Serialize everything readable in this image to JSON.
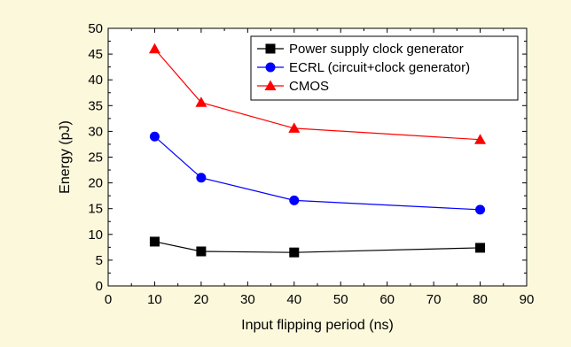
{
  "chart_data": {
    "type": "line",
    "xlabel": "Input flipping period (ns)",
    "ylabel": "Energy (pJ)",
    "xlim": [
      0,
      90
    ],
    "ylim": [
      0,
      50
    ],
    "x_ticks": [
      0,
      10,
      20,
      30,
      40,
      50,
      60,
      70,
      80,
      90
    ],
    "y_ticks": [
      0,
      5,
      10,
      15,
      20,
      25,
      30,
      35,
      40,
      45,
      50
    ],
    "grid": false,
    "legend_position": "top-right",
    "series": [
      {
        "name": "Power supply clock generator",
        "color": "#000000",
        "marker": "square",
        "x": [
          10,
          20,
          40,
          80
        ],
        "y": [
          8.6,
          6.7,
          6.5,
          7.4
        ]
      },
      {
        "name": "ECRL (circuit+clock generator)",
        "color": "#0000ff",
        "marker": "circle",
        "x": [
          10,
          20,
          40,
          80
        ],
        "y": [
          29.0,
          21.0,
          16.6,
          14.8
        ]
      },
      {
        "name": "CMOS",
        "color": "#ff0000",
        "marker": "triangle",
        "x": [
          10,
          20,
          40,
          80
        ],
        "y": [
          46.0,
          35.6,
          30.6,
          28.4
        ]
      }
    ]
  }
}
